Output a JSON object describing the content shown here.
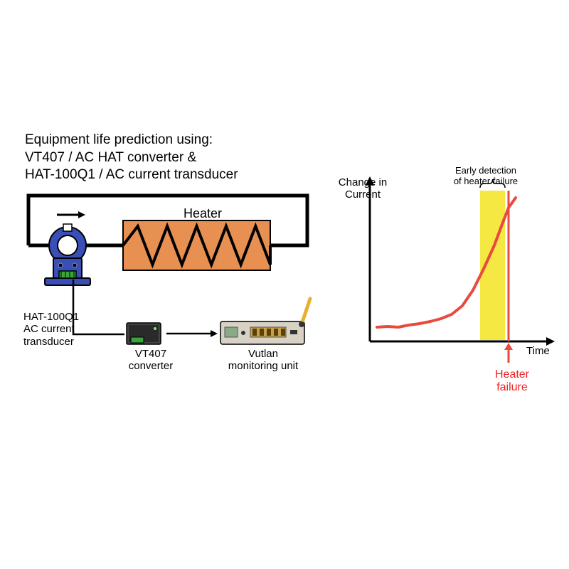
{
  "title": {
    "line1": "Equipment life prediction using:",
    "line2": "VT407 / AC HAT converter &",
    "line3": "HAT-100Q1 / AC current transducer"
  },
  "diagram": {
    "heater_label": "Heater",
    "heater_color": "#e89052",
    "transducer": {
      "label_line1": "HAT-100Q1",
      "label_line2": "AC current",
      "label_line3": "transducer",
      "body_color": "#3a4fb5",
      "terminal_color": "#3aa63a"
    },
    "converter": {
      "label_line1": "VT407",
      "label_line2": "converter",
      "body_color": "#444"
    },
    "monitor": {
      "label_line1": "Vutlan",
      "label_line2": "monitoring unit",
      "body_color": "#d8d2c4",
      "antenna_color": "#e8b030"
    },
    "wire_color": "#000000",
    "wire_width": 5
  },
  "chart": {
    "y_axis_label": "Change in\nCurrent",
    "x_axis_label": "Time",
    "early_detection_label": "Early detection\nof heater failure",
    "failure_label": "Heater\nfailure",
    "highlight_color": "#f5e52e",
    "curve_color": "#e84a3d",
    "failure_line_color": "#e84a3d",
    "axis_color": "#000000",
    "axis_width": 3,
    "curve_width": 4,
    "curve_points": [
      [
        530,
        460
      ],
      [
        545,
        459
      ],
      [
        560,
        460
      ],
      [
        575,
        457
      ],
      [
        590,
        455
      ],
      [
        605,
        452
      ],
      [
        620,
        448
      ],
      [
        635,
        442
      ],
      [
        650,
        430
      ],
      [
        665,
        408
      ],
      [
        680,
        378
      ],
      [
        695,
        345
      ],
      [
        705,
        318
      ],
      [
        715,
        292
      ],
      [
        725,
        278
      ]
    ],
    "xlim": [
      520,
      770
    ],
    "ylim": [
      480,
      250
    ],
    "highlight_x": [
      675,
      710
    ],
    "failure_x": 715
  },
  "colors": {
    "text": "#000000",
    "failure_text": "#e22"
  }
}
